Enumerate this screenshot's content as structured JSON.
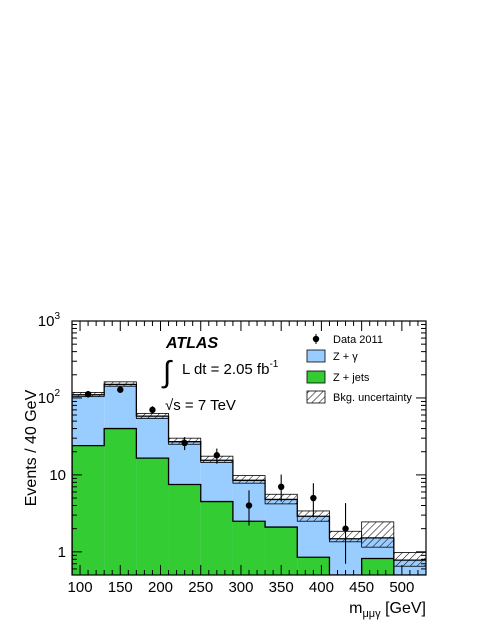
{
  "chart_data": {
    "type": "bar",
    "x_bin_edges": [
      90,
      130,
      170,
      210,
      250,
      290,
      330,
      370,
      410,
      450,
      490,
      530
    ],
    "xlim": [
      90,
      530
    ],
    "ylim": [
      0.5,
      1000
    ],
    "y_scale": "log",
    "x_ticks": [
      100,
      150,
      200,
      250,
      300,
      350,
      400,
      450,
      500
    ],
    "y_ticks": [
      {
        "value": 1,
        "label": "1"
      },
      {
        "value": 10,
        "label": "10"
      },
      {
        "value": 100,
        "label": "10",
        "exp": "2"
      },
      {
        "value": 1000,
        "label": "10",
        "exp": "3"
      }
    ],
    "ylabel": "Events / 40 GeV",
    "xlabel": {
      "base": "m",
      "sub": "μμγ",
      "unit": " [GeV]"
    },
    "experiment": "ATLAS",
    "lumi": {
      "prefix": "L dt = 2.05 fb",
      "exp": "-1",
      "integral": "∫"
    },
    "energy": {
      "root": "√",
      "text": "s = 7 TeV"
    },
    "series": [
      {
        "name": "Z + jets",
        "color": "#33cc33",
        "values": [
          24,
          40,
          16.5,
          7.5,
          4.5,
          2.5,
          2.1,
          0.85,
          0.35,
          0.82,
          0.4
        ]
      },
      {
        "name": "Z + γ",
        "color": "#99ccff",
        "values": [
          110,
          150,
          58,
          27,
          15.5,
          8.5,
          4.8,
          2.9,
          1.48,
          1.52,
          0.78
        ]
      }
    ],
    "uncertainty": {
      "name": "Bkg. uncertainty",
      "low": [
        104,
        142,
        54,
        25,
        14.5,
        7.8,
        4.2,
        2.5,
        1.35,
        1.15,
        0.65
      ],
      "high": [
        118,
        162,
        63,
        30,
        17.5,
        9.8,
        5.6,
        3.4,
        1.85,
        2.45,
        0.98
      ]
    },
    "data": {
      "name": "Data 2011",
      "x": [
        110,
        150,
        190,
        230,
        270,
        310,
        350,
        390,
        430,
        470,
        510
      ],
      "y": [
        112,
        128,
        70,
        26,
        18,
        4,
        7,
        5,
        2,
        0,
        0
      ],
      "err_low": [
        11,
        11,
        8,
        5,
        4,
        1.8,
        2.5,
        2.2,
        1.3,
        0,
        0
      ],
      "err_high": [
        11,
        11,
        8,
        5,
        4,
        2.3,
        3.1,
        2.8,
        2.3,
        0,
        0
      ]
    },
    "legend_position": "top-right",
    "grid": false
  }
}
